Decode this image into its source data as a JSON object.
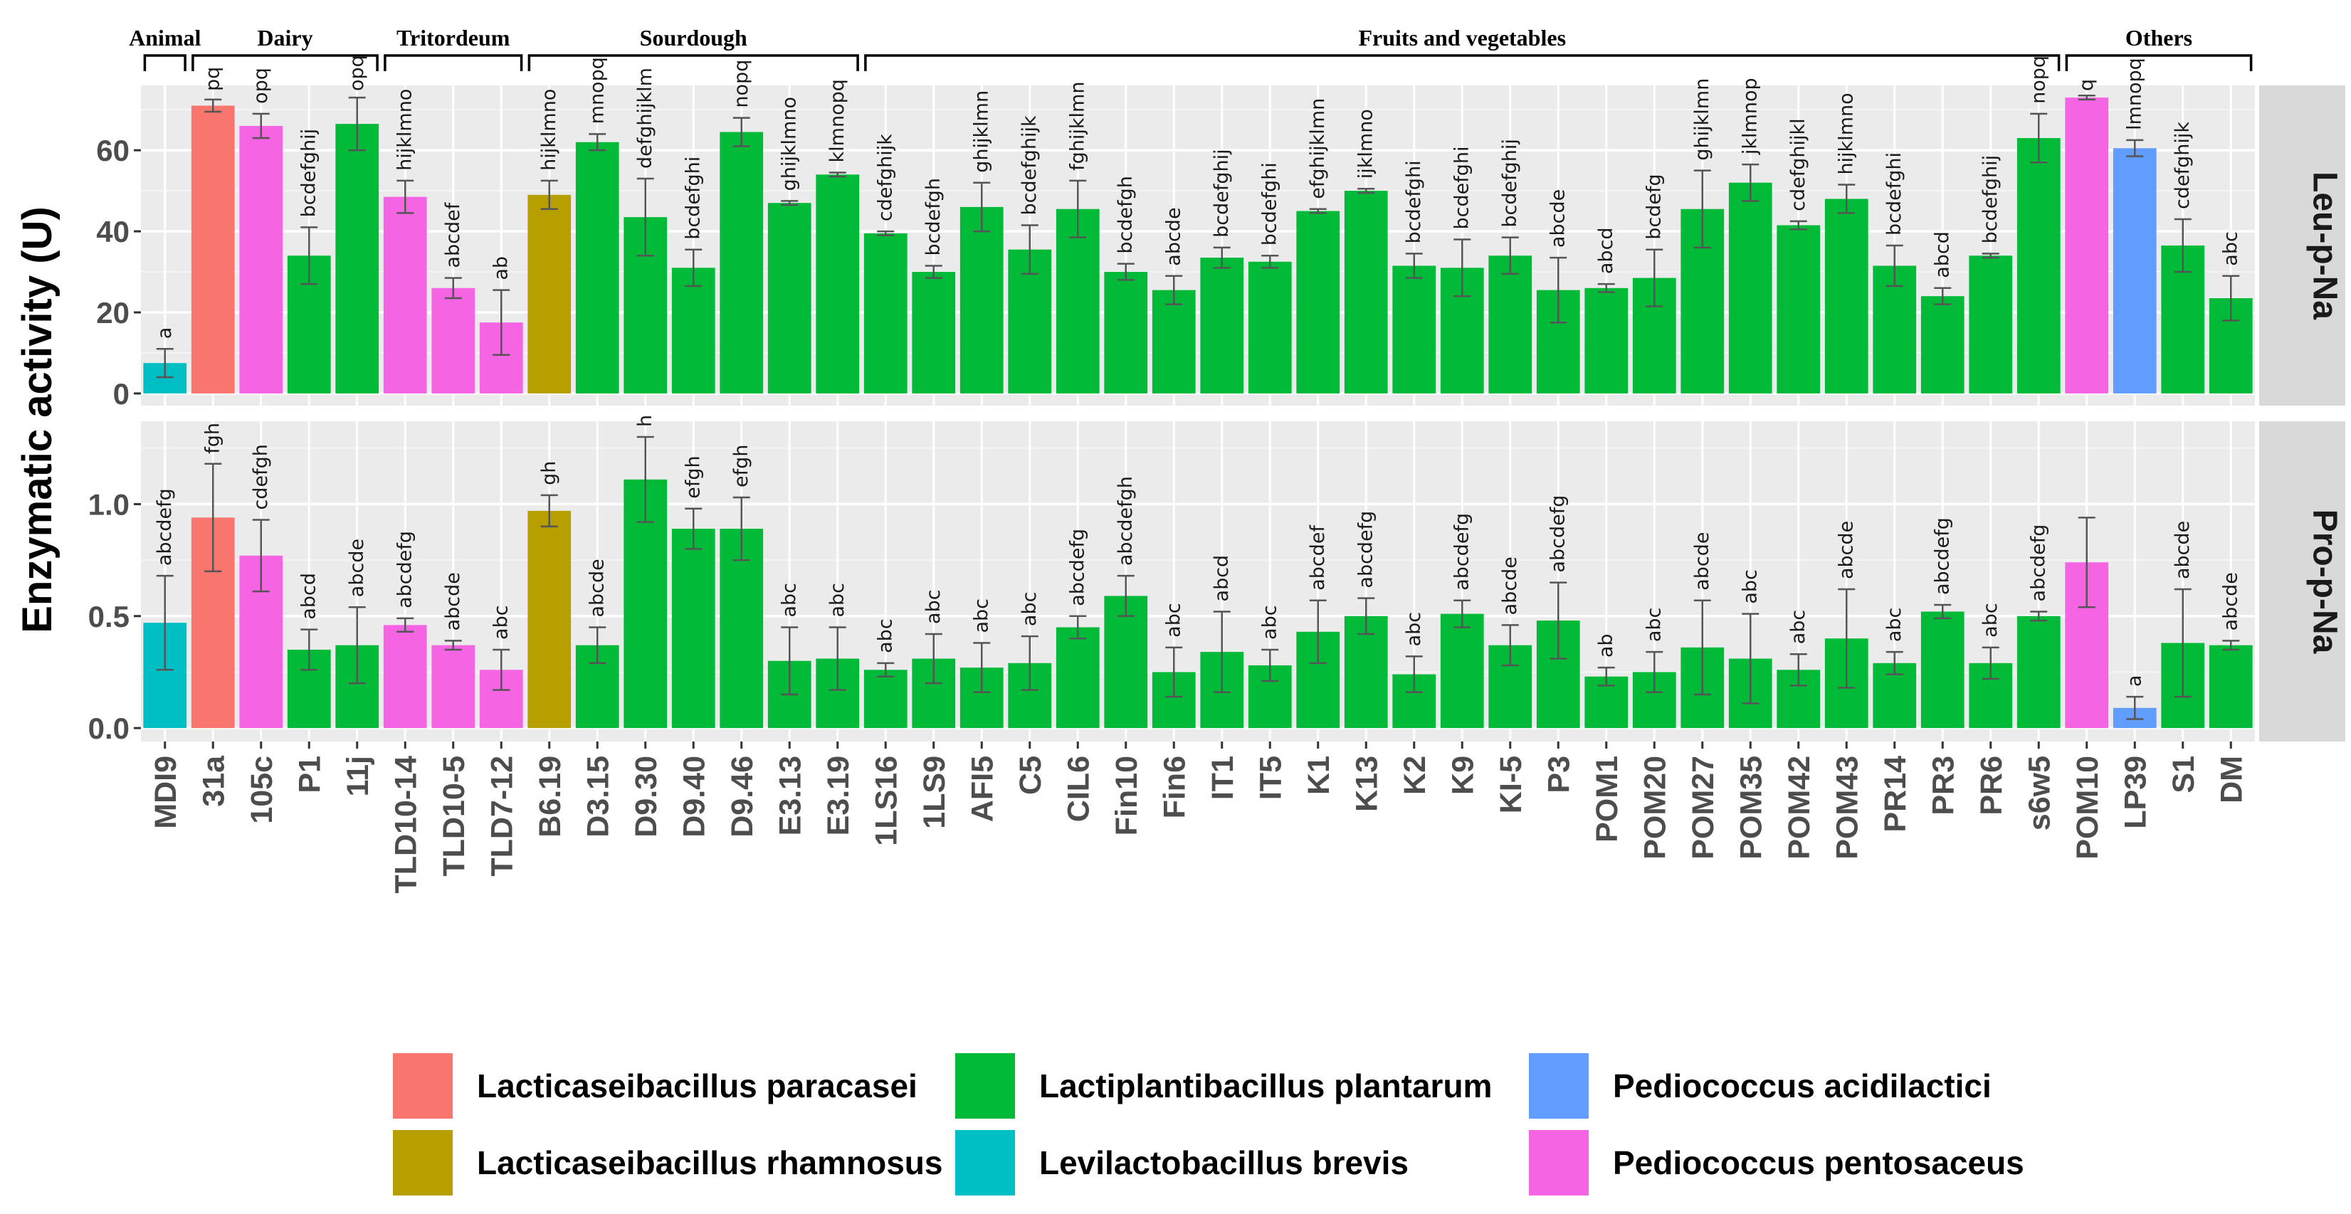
{
  "chart_data": {
    "type": "bar",
    "ylabel": "Enzymatic activity (U)",
    "categories": [
      "MDI9",
      "31a",
      "105c",
      "P1",
      "11j",
      "TLD10-14",
      "TLD10-5",
      "TLD7-12",
      "B6.19",
      "D3.15",
      "D9.30",
      "D9.40",
      "D9.46",
      "E3.13",
      "E3.19",
      "1LS16",
      "1LS9",
      "AFI5",
      "C5",
      "CIL6",
      "Fin10",
      "Fin6",
      "IT1",
      "IT5",
      "K1",
      "K13",
      "K2",
      "K9",
      "KI-5",
      "P3",
      "POM1",
      "POM20",
      "POM27",
      "POM35",
      "POM42",
      "POM43",
      "PR14",
      "PR3",
      "PR6",
      "s6w5",
      "POM10",
      "LP39",
      "S1",
      "DM"
    ],
    "species": [
      "Lb",
      "Lp",
      "Pp",
      "Lpl",
      "Lpl",
      "Pp",
      "Pp",
      "Pp",
      "Lr",
      "Lpl",
      "Lpl",
      "Lpl",
      "Lpl",
      "Lpl",
      "Lpl",
      "Lpl",
      "Lpl",
      "Lpl",
      "Lpl",
      "Lpl",
      "Lpl",
      "Lpl",
      "Lpl",
      "Lpl",
      "Lpl",
      "Lpl",
      "Lpl",
      "Lpl",
      "Lpl",
      "Lpl",
      "Lpl",
      "Lpl",
      "Lpl",
      "Lpl",
      "Lpl",
      "Lpl",
      "Lpl",
      "Lpl",
      "Lpl",
      "Lpl",
      "Pp",
      "Pa",
      "Lpl",
      "Lpl"
    ],
    "groups": [
      {
        "name": "Animal",
        "start": 0,
        "end": 0
      },
      {
        "name": "Dairy",
        "start": 1,
        "end": 4
      },
      {
        "name": "Tritordeum",
        "start": 5,
        "end": 7
      },
      {
        "name": "Sourdough",
        "start": 8,
        "end": 14
      },
      {
        "name": "Fruits and vegetables",
        "start": 15,
        "end": 39
      },
      {
        "name": "Others",
        "start": 40,
        "end": 43
      }
    ],
    "legend": [
      {
        "key": "Lp",
        "label": "Lacticaseibacillus paracasei",
        "color": "#F8766D"
      },
      {
        "key": "Lr",
        "label": "Lacticaseibacillus rhamnosus",
        "color": "#B79F00"
      },
      {
        "key": "Lpl",
        "label": "Lactiplantibacillus plantarum",
        "color": "#00BA38"
      },
      {
        "key": "Lb",
        "label": "Levilactobacillus  brevis",
        "color": "#00BFC4"
      },
      {
        "key": "Pa",
        "label": "Pediococcus acidilactici",
        "color": "#619CFF"
      },
      {
        "key": "Pp",
        "label": "Pediococcus pentosaceus",
        "color": "#F564E3"
      }
    ],
    "panels": [
      {
        "name": "Leu-p-Na",
        "ylim": [
          -3,
          76
        ],
        "yticks": [
          0,
          20,
          40,
          60
        ],
        "ytick_labels": [
          "0",
          "20",
          "40",
          "60"
        ],
        "values": [
          7.5,
          71,
          66,
          34,
          66.5,
          48.5,
          26,
          17.5,
          49,
          62,
          43.5,
          31,
          64.5,
          47,
          54,
          39.5,
          30,
          46,
          35.5,
          45.5,
          30,
          25.5,
          33.5,
          32.5,
          45,
          50,
          31.5,
          31,
          34,
          25.5,
          26,
          28.5,
          45.5,
          52,
          41.5,
          48,
          31.5,
          24,
          34,
          63,
          73,
          60.5,
          36.5,
          23.5
        ],
        "errors": [
          3.5,
          1.5,
          3,
          7,
          6.5,
          4,
          2.5,
          8,
          3.5,
          2,
          9.5,
          4.5,
          3.5,
          0.5,
          0.5,
          0.5,
          1.5,
          6,
          6,
          7,
          2,
          3.5,
          2.5,
          1.5,
          0.5,
          0.5,
          3,
          7,
          4.5,
          8,
          1,
          7,
          9.5,
          4.5,
          1,
          3.5,
          5,
          2,
          0.5,
          6,
          0.5,
          2,
          6.5,
          5.5
        ],
        "letters": [
          "a",
          "pq",
          "opq",
          "bcdefghij",
          "opq",
          "hijklmno",
          "abcdef",
          "ab",
          "hijklmno",
          "mnopq",
          "defghijklm",
          "bcdefghi",
          "nopq",
          "ghijklmno",
          "klmnopq",
          "cdefghijk",
          "bcdefgh",
          "ghijklmn",
          "bcdefghijk",
          "fghijklmn",
          "bcdefgh",
          "abcde",
          "bcdefghij",
          "bcdefghi",
          "efghijklmn",
          "ijklmno",
          "bcdefghi",
          "bcdefghi",
          "bcdefghij",
          "abcde",
          "abcd",
          "bcdefg",
          "ghijklmn",
          "jklmnop",
          "cdefghijkl",
          "hijklmno",
          "bcdefghi",
          "abcd",
          "bcdefghij",
          "nopq",
          "q",
          "lmnopq",
          "cdefghijk",
          "abc"
        ]
      },
      {
        "name": "Pro-p-Na",
        "ylim": [
          -0.06,
          1.37
        ],
        "yticks": [
          0,
          0.5,
          1.0
        ],
        "ytick_labels": [
          "0.0",
          "0.5",
          "1.0"
        ],
        "values": [
          0.47,
          0.94,
          0.77,
          0.35,
          0.37,
          0.46,
          0.37,
          0.26,
          0.97,
          0.37,
          1.11,
          0.89,
          0.89,
          0.3,
          0.31,
          0.26,
          0.31,
          0.27,
          0.29,
          0.45,
          0.59,
          0.25,
          0.34,
          0.28,
          0.43,
          0.5,
          0.24,
          0.51,
          0.37,
          0.48,
          0.23,
          0.25,
          0.36,
          0.31,
          0.26,
          0.4,
          0.29,
          0.52,
          0.29,
          0.5,
          0.74,
          0.09,
          0.38,
          0.37
        ],
        "errors": [
          0.21,
          0.24,
          0.16,
          0.09,
          0.17,
          0.03,
          0.02,
          0.09,
          0.07,
          0.08,
          0.19,
          0.09,
          0.14,
          0.15,
          0.14,
          0.03,
          0.11,
          0.11,
          0.12,
          0.05,
          0.09,
          0.11,
          0.18,
          0.07,
          0.14,
          0.08,
          0.08,
          0.06,
          0.09,
          0.17,
          0.04,
          0.09,
          0.21,
          0.2,
          0.07,
          0.22,
          0.05,
          0.03,
          0.07,
          0.02,
          0.2,
          0.05,
          0.24,
          0.02
        ],
        "letters": [
          "abcdefg",
          "fgh",
          "cdefgh",
          "abcd",
          "abcde",
          "abcdefg",
          "abcde",
          "abc",
          "gh",
          "abcde",
          "h",
          "efgh",
          "efgh",
          "abc",
          "abc",
          "abc",
          "abc",
          "abc",
          "abc",
          "abcdefg",
          "abcdefgh",
          "abc",
          "abcd",
          "abc",
          "abcdef",
          "abcdefg",
          "abc",
          "abcdefg",
          "abcde",
          "abcdefg",
          "ab",
          "abc",
          "abcde",
          "abc",
          "abc",
          "abcde",
          "abc",
          "abcdefg",
          "abc",
          "abcdefg",
          "",
          "a",
          "abcde",
          "abcde"
        ]
      }
    ]
  }
}
